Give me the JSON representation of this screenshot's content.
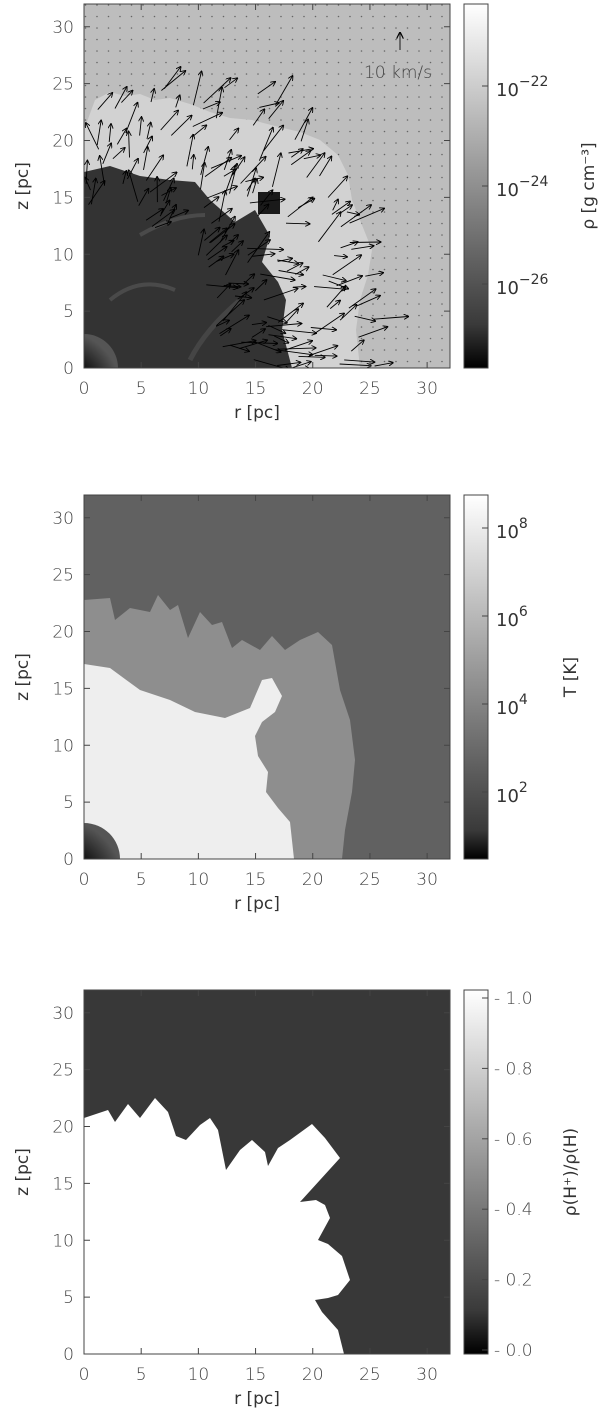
{
  "chart_data": [
    {
      "type": "heatmap",
      "panel": "density",
      "xlabel": "r [pc]",
      "ylabel": "z [pc]",
      "xlim": [
        0,
        32
      ],
      "ylim": [
        0,
        32
      ],
      "xticks": [
        "0",
        "5",
        "10",
        "15",
        "20",
        "25",
        "30"
      ],
      "yticks": [
        "0",
        "5",
        "10",
        "15",
        "20",
        "25",
        "30"
      ],
      "colorbar": {
        "label": "ρ [g cm⁻³]",
        "scale": "log",
        "ticks": [
          {
            "base": "10",
            "exp": "−22"
          },
          {
            "base": "10",
            "exp": "−24"
          },
          {
            "base": "10",
            "exp": "−26"
          }
        ]
      },
      "vector_key": {
        "value": 10,
        "label": "10 km/s"
      }
    },
    {
      "type": "heatmap",
      "panel": "temperature",
      "xlabel": "r [pc]",
      "ylabel": "z [pc]",
      "xlim": [
        0,
        32
      ],
      "ylim": [
        0,
        32
      ],
      "xticks": [
        "0",
        "5",
        "10",
        "15",
        "20",
        "25",
        "30"
      ],
      "yticks": [
        "0",
        "5",
        "10",
        "15",
        "20",
        "25",
        "30"
      ],
      "colorbar": {
        "label": "T [K]",
        "scale": "log",
        "ticks": [
          {
            "base": "10",
            "exp": "8"
          },
          {
            "base": "10",
            "exp": "6"
          },
          {
            "base": "10",
            "exp": "4"
          },
          {
            "base": "10",
            "exp": "2"
          }
        ]
      }
    },
    {
      "type": "heatmap",
      "panel": "ionization",
      "xlabel": "r [pc]",
      "ylabel": "z [pc]",
      "xlim": [
        0,
        32
      ],
      "ylim": [
        0,
        32
      ],
      "xticks": [
        "0",
        "5",
        "10",
        "15",
        "20",
        "25",
        "30"
      ],
      "yticks": [
        "0",
        "5",
        "10",
        "15",
        "20",
        "25",
        "30"
      ],
      "colorbar": {
        "label": "ρ(H⁺)/ρ(H)",
        "scale": "linear",
        "ticks": [
          "1.0",
          "0.8",
          "0.6",
          "0.4",
          "0.2",
          "0.0"
        ]
      }
    }
  ]
}
